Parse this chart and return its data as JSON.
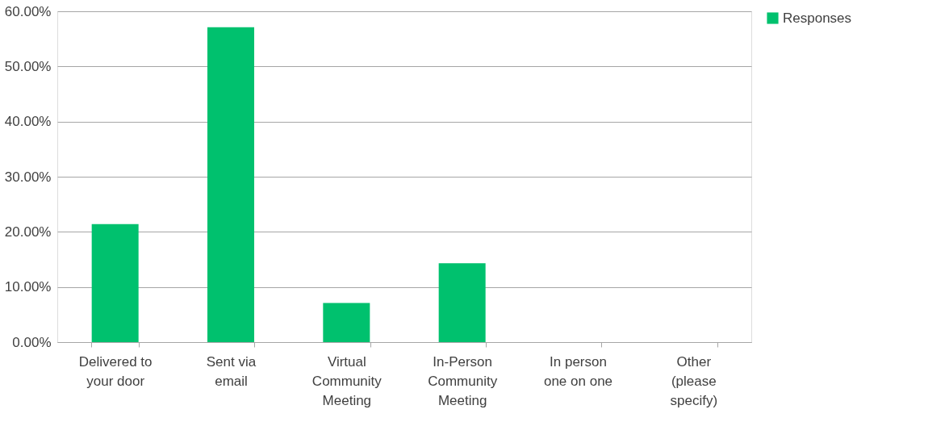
{
  "chart_data": {
    "type": "bar",
    "categories": [
      "Delivered to\nyour door",
      "Sent via\nemail",
      "Virtual\nCommunity\nMeeting",
      "In-Person\nCommunity\nMeeting",
      "In person\none on one",
      "Other\n(please\nspecify)"
    ],
    "series": [
      {
        "name": "Responses",
        "color": "#00c16e",
        "values": [
          21.4,
          57.1,
          7.1,
          14.3,
          0,
          0
        ]
      }
    ],
    "ylim": [
      0,
      60
    ],
    "yticks": [
      {
        "value": 0,
        "label": "0.00%"
      },
      {
        "value": 10,
        "label": "10.00%"
      },
      {
        "value": 20,
        "label": "20.00%"
      },
      {
        "value": 30,
        "label": "30.00%"
      },
      {
        "value": 40,
        "label": "40.00%"
      },
      {
        "value": 50,
        "label": "50.00%"
      },
      {
        "value": 60,
        "label": "60.00%"
      }
    ],
    "grid": "y",
    "legend": "right"
  }
}
